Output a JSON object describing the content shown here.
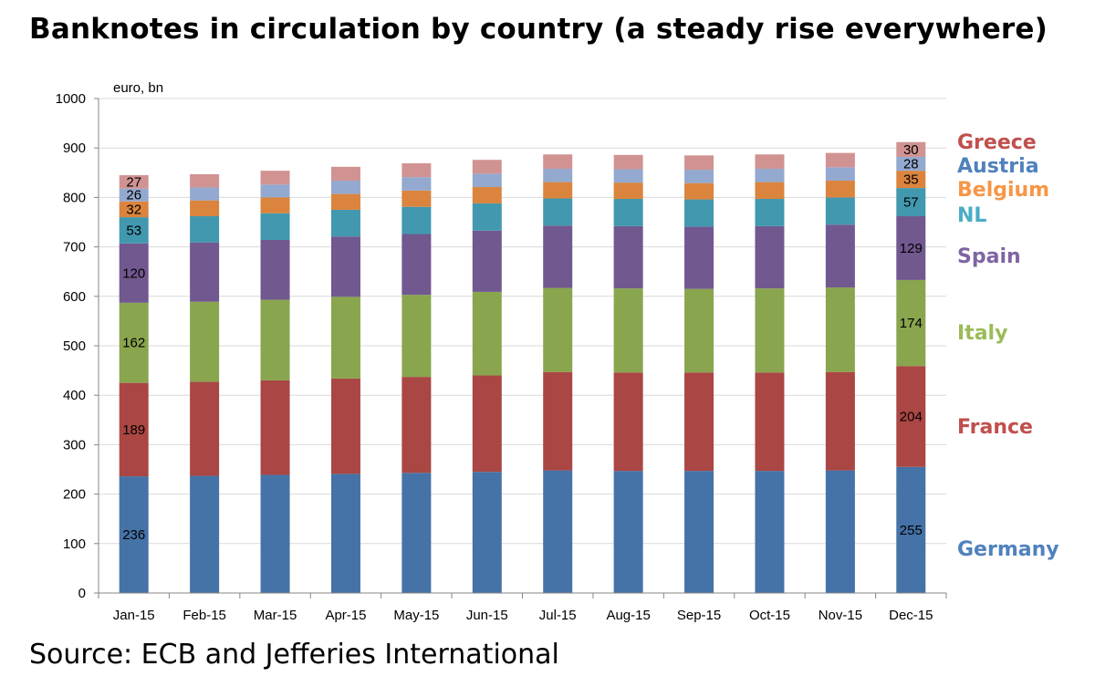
{
  "title": "Banknotes in circulation by country (a steady rise everywhere)",
  "source": "Source: ECB and Jefferies International",
  "chart_data": {
    "type": "bar",
    "stacked": true,
    "title": "Banknotes in circulation by country (a steady rise everywhere)",
    "ylabel": "euro, bn",
    "xlabel": "",
    "ylim": [
      0,
      1000
    ],
    "yticks": [
      0,
      100,
      200,
      300,
      400,
      500,
      600,
      700,
      800,
      900,
      1000
    ],
    "categories": [
      "Jan-15",
      "Feb-15",
      "Mar-15",
      "Apr-15",
      "May-15",
      "Jun-15",
      "Jul-15",
      "Aug-15",
      "Sep-15",
      "Oct-15",
      "Nov-15",
      "Dec-15"
    ],
    "series": [
      {
        "name": "Germany",
        "color": "#4572a7",
        "values": [
          236,
          237,
          239,
          241,
          243,
          245,
          248,
          247,
          247,
          247,
          248,
          255
        ],
        "labels": {
          "0": "236",
          "11": "255"
        }
      },
      {
        "name": "France",
        "color": "#aa4643",
        "values": [
          189,
          190,
          191,
          193,
          194,
          195,
          199,
          199,
          199,
          199,
          199,
          204
        ],
        "labels": {
          "0": "189",
          "11": "204"
        }
      },
      {
        "name": "Italy",
        "color": "#89a54e",
        "values": [
          162,
          162,
          163,
          165,
          166,
          169,
          170,
          170,
          169,
          170,
          171,
          174
        ],
        "labels": {
          "0": "162",
          "11": "174"
        }
      },
      {
        "name": "Spain",
        "color": "#71588f",
        "values": [
          120,
          120,
          121,
          122,
          123,
          124,
          126,
          126,
          126,
          126,
          127,
          129
        ],
        "labels": {
          "0": "120",
          "11": "129"
        }
      },
      {
        "name": "NL",
        "color": "#4198af",
        "values": [
          53,
          53,
          54,
          54,
          55,
          55,
          55,
          55,
          55,
          55,
          55,
          57
        ],
        "labels": {
          "0": "53",
          "11": "57"
        }
      },
      {
        "name": "Belgium",
        "color": "#db843d",
        "values": [
          32,
          32,
          32,
          32,
          33,
          33,
          33,
          33,
          33,
          34,
          34,
          35
        ],
        "labels": {
          "0": "32",
          "11": "35"
        }
      },
      {
        "name": "Austria",
        "color": "#93a9cf",
        "values": [
          26,
          26,
          26,
          27,
          27,
          27,
          27,
          27,
          27,
          27,
          27,
          28
        ],
        "labels": {
          "0": "26",
          "11": "28"
        }
      },
      {
        "name": "Greece",
        "color": "#d19392",
        "values": [
          27,
          27,
          28,
          28,
          28,
          28,
          29,
          29,
          29,
          29,
          29,
          30
        ],
        "labels": {
          "0": "27",
          "11": "30"
        }
      }
    ],
    "legend": [
      {
        "name": "Greece",
        "color": "#c0504d"
      },
      {
        "name": "Austria",
        "color": "#4f81bd"
      },
      {
        "name": "Belgium",
        "color": "#f79646"
      },
      {
        "name": "NL",
        "color": "#4bacc6"
      },
      {
        "name": "Spain",
        "color": "#8064a2"
      },
      {
        "name": "Italy",
        "color": "#9bbb59"
      },
      {
        "name": "France",
        "color": "#c0504d"
      },
      {
        "name": "Germany",
        "color": "#4f81bd"
      }
    ]
  }
}
